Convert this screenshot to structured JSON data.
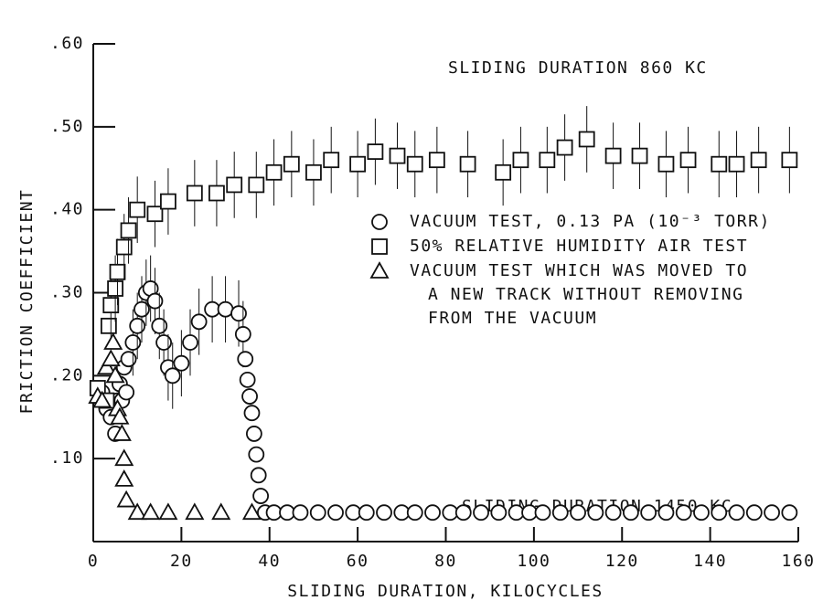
{
  "chart_data": {
    "type": "scatter",
    "xlabel": "SLIDING DURATION, KILOCYCLES",
    "ylabel": "FRICTION COEFFICIENT",
    "annotations": [
      "SLIDING DURATION 860 KC",
      "SLIDING DURATION 1450 KC"
    ],
    "xlim": [
      0,
      160
    ],
    "xticks": [
      0,
      20,
      40,
      60,
      80,
      100,
      120,
      140,
      160
    ],
    "ylim": [
      0,
      0.6
    ],
    "yticks": [
      {
        "value": 0.1,
        "label": ".10"
      },
      {
        "value": 0.2,
        "label": ".20"
      },
      {
        "value": 0.3,
        "label": ".30"
      },
      {
        "value": 0.4,
        "label": ".40"
      },
      {
        "value": 0.5,
        "label": ".50"
      },
      {
        "value": 0.6,
        "label": ".60"
      }
    ],
    "series": [
      {
        "name": "VACUUM TEST, 0.13 PA (10⁻³ TORR)",
        "marker": "circle",
        "color": "#111111",
        "x": [
          2,
          3,
          4,
          5,
          5.5,
          6,
          6.5,
          7,
          7.5,
          8,
          9,
          10,
          11,
          12,
          13,
          14,
          15,
          16,
          17,
          18,
          20,
          22,
          24,
          27,
          30,
          33,
          34,
          34.5,
          35,
          35.5,
          36,
          36.5,
          37,
          37.5,
          38,
          39,
          41,
          44,
          47,
          51,
          55,
          59,
          62,
          66,
          70,
          73,
          77,
          81,
          84,
          88,
          92,
          96,
          99,
          102,
          106,
          110,
          114,
          118,
          122,
          126,
          130,
          134,
          138,
          142,
          146,
          150,
          154,
          158
        ],
        "values": [
          0.18,
          0.16,
          0.15,
          0.13,
          0.17,
          0.19,
          0.17,
          0.21,
          0.18,
          0.22,
          0.24,
          0.26,
          0.28,
          0.3,
          0.305,
          0.29,
          0.26,
          0.24,
          0.21,
          0.2,
          0.215,
          0.24,
          0.265,
          0.28,
          0.28,
          0.275,
          0.25,
          0.22,
          0.195,
          0.175,
          0.155,
          0.13,
          0.105,
          0.08,
          0.055,
          0.035,
          0.035,
          0.035,
          0.035,
          0.035,
          0.035,
          0.035,
          0.035,
          0.035,
          0.035,
          0.035,
          0.035,
          0.035,
          0.035,
          0.035,
          0.035,
          0.035,
          0.035,
          0.035,
          0.035,
          0.035,
          0.035,
          0.035,
          0.035,
          0.035,
          0.035,
          0.035,
          0.035,
          0.035,
          0.035,
          0.035,
          0.035,
          0.035
        ],
        "errors": [
          null,
          null,
          null,
          null,
          null,
          null,
          null,
          null,
          null,
          null,
          0.04,
          0.04,
          0.04,
          0.04,
          0.04,
          0.04,
          0.04,
          0.04,
          0.04,
          0.04,
          0.04,
          0.04,
          0.04,
          0.04,
          0.04,
          0.04,
          0.04,
          null,
          null,
          null,
          null,
          null,
          null,
          null,
          null,
          null,
          null,
          null,
          null,
          null,
          null,
          null,
          null,
          null,
          null,
          null,
          null,
          null,
          null,
          null,
          null,
          null,
          null,
          null,
          null,
          null,
          null,
          null,
          null,
          null,
          null,
          null,
          null,
          null,
          null,
          null,
          null,
          null
        ]
      },
      {
        "name": "50% RELATIVE HUMIDITY AIR TEST",
        "marker": "square",
        "color": "#111111",
        "x": [
          1,
          3,
          3.5,
          4,
          5,
          5.5,
          7,
          8,
          10,
          14,
          17,
          23,
          28,
          32,
          37,
          41,
          45,
          50,
          54,
          60,
          64,
          69,
          73,
          78,
          85,
          93,
          97,
          103,
          107,
          112,
          118,
          124,
          130,
          135,
          142,
          146,
          151,
          158
        ],
        "values": [
          0.185,
          0.17,
          0.26,
          0.285,
          0.305,
          0.325,
          0.355,
          0.375,
          0.4,
          0.395,
          0.41,
          0.42,
          0.42,
          0.43,
          0.43,
          0.445,
          0.455,
          0.445,
          0.46,
          0.455,
          0.47,
          0.465,
          0.455,
          0.46,
          0.455,
          0.445,
          0.46,
          0.46,
          0.475,
          0.485,
          0.465,
          0.465,
          0.455,
          0.46,
          0.455,
          0.455,
          0.46,
          0.46
        ],
        "errors": [
          null,
          null,
          null,
          0.04,
          0.04,
          0.04,
          0.04,
          0.04,
          0.04,
          0.04,
          0.04,
          0.04,
          0.04,
          0.04,
          0.04,
          0.04,
          0.04,
          0.04,
          0.04,
          0.04,
          0.04,
          0.04,
          0.04,
          0.04,
          0.04,
          0.04,
          0.04,
          0.04,
          0.04,
          0.04,
          0.04,
          0.04,
          0.04,
          0.04,
          0.04,
          0.04,
          0.04,
          0.04
        ]
      },
      {
        "name": "VACUUM TEST WHICH WAS MOVED TO\nA NEW TRACK WITHOUT REMOVING\nFROM THE VACUUM",
        "marker": "triangle",
        "color": "#111111",
        "x": [
          1,
          2,
          3,
          4,
          4.5,
          5,
          5.5,
          6,
          6.5,
          7,
          7,
          7.5,
          10,
          13,
          17,
          23,
          29,
          36
        ],
        "values": [
          0.175,
          0.17,
          0.21,
          0.22,
          0.24,
          0.2,
          0.16,
          0.15,
          0.13,
          0.1,
          0.075,
          0.05,
          0.035,
          0.035,
          0.035,
          0.035,
          0.035,
          0.035
        ]
      }
    ]
  }
}
